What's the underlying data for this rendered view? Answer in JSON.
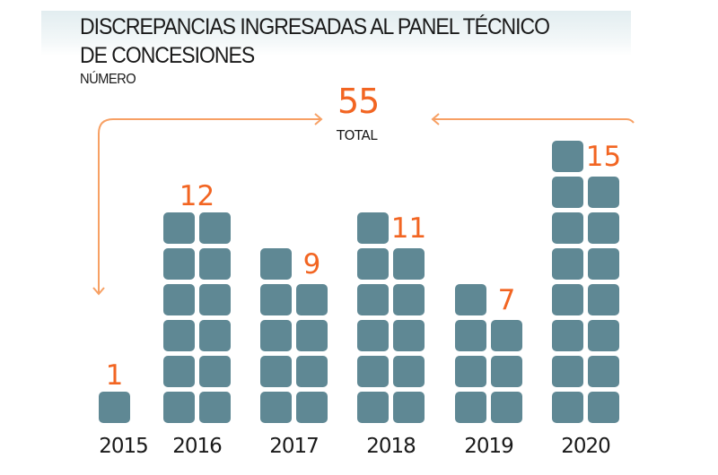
{
  "header": {
    "title_line1": "DISCREPANCIAS INGRESADAS AL PANEL TÉCNICO",
    "title_line2": "DE CONCESIONES",
    "subtitle": "NÚMERO"
  },
  "total": {
    "value": "55",
    "label": "TOTAL"
  },
  "colors": {
    "accent": "#f26522",
    "block": "#5f8894",
    "arrow": "#f7a064",
    "text": "#1a1a1a",
    "band": "#e2edf0"
  },
  "chart_data": {
    "type": "bar",
    "subtype": "unit-pictogram (stacked squares, 2 per row)",
    "title": "DISCREPANCIAS INGRESADAS AL PANEL TÉCNICO DE CONCESIONES",
    "subtitle": "NÚMERO",
    "xlabel": "",
    "ylabel": "NÚMERO",
    "categories": [
      "2015",
      "2016",
      "2017",
      "2018",
      "2019",
      "2020"
    ],
    "values": [
      1,
      12,
      9,
      11,
      7,
      15
    ],
    "total": 55,
    "total_label": "TOTAL",
    "units_per_row": 2,
    "grid": false,
    "legend": "none"
  }
}
